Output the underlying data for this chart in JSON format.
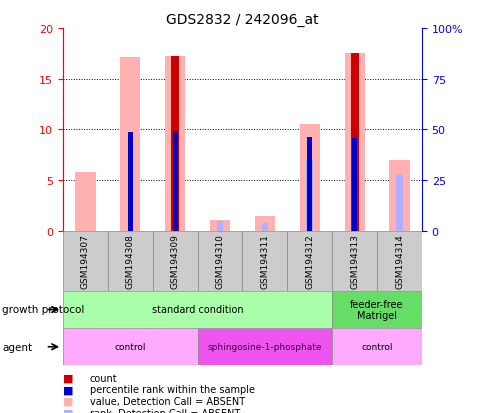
{
  "title": "GDS2832 / 242096_at",
  "samples": [
    "GSM194307",
    "GSM194308",
    "GSM194309",
    "GSM194310",
    "GSM194311",
    "GSM194312",
    "GSM194313",
    "GSM194314"
  ],
  "count_values": [
    null,
    null,
    17.2,
    null,
    null,
    null,
    17.5,
    null
  ],
  "rank_values": [
    null,
    9.7,
    9.8,
    null,
    null,
    9.3,
    9.2,
    null
  ],
  "absent_value": [
    5.8,
    17.1,
    17.2,
    1.1,
    1.5,
    10.5,
    17.5,
    7.0
  ],
  "absent_rank": [
    null,
    null,
    null,
    1.0,
    0.8,
    7.0,
    null,
    5.5
  ],
  "ylim": [
    0,
    20
  ],
  "y2lim": [
    0,
    100
  ],
  "yticks": [
    0,
    5,
    10,
    15,
    20
  ],
  "y2ticks": [
    0,
    25,
    50,
    75,
    100
  ],
  "y2tick_labels": [
    "0",
    "25",
    "50",
    "75",
    "100%"
  ],
  "color_count": "#cc0000",
  "color_rank": "#0000cc",
  "color_absent_value": "#ffb0b0",
  "color_absent_rank": "#b0b0ff",
  "growth_protocol_groups": [
    {
      "label": "standard condition",
      "start": 0,
      "end": 6,
      "color": "#aaffaa"
    },
    {
      "label": "feeder-free\nMatrigel",
      "start": 6,
      "end": 8,
      "color": "#66dd66"
    }
  ],
  "agent_groups": [
    {
      "label": "control",
      "start": 0,
      "end": 3,
      "color": "#ffaaff"
    },
    {
      "label": "sphingosine-1-phosphate",
      "start": 3,
      "end": 6,
      "color": "#ee55ee"
    },
    {
      "label": "control",
      "start": 6,
      "end": 8,
      "color": "#ffaaff"
    }
  ],
  "legend_items": [
    {
      "color": "#cc0000",
      "label": "count"
    },
    {
      "color": "#0000cc",
      "label": "percentile rank within the sample"
    },
    {
      "color": "#ffb0b0",
      "label": "value, Detection Call = ABSENT"
    },
    {
      "color": "#b0b0ff",
      "label": "rank, Detection Call = ABSENT"
    }
  ]
}
